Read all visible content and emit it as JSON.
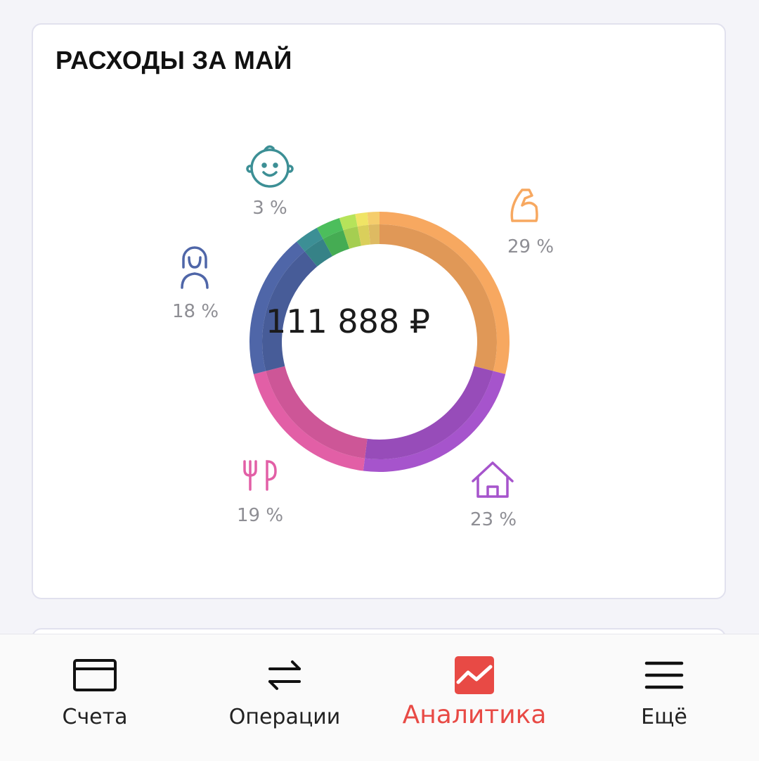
{
  "card": {
    "title": "РАСХОДЫ ЗА МАЙ",
    "total": "111 888 ₽"
  },
  "chart_data": {
    "type": "pie",
    "style": "donut",
    "center_label": "111 888 ₽",
    "slices": [
      {
        "category": "sport",
        "icon": "biceps-icon",
        "label": "29 %",
        "value": 29,
        "color": "#f7a860"
      },
      {
        "category": "home",
        "icon": "house-icon",
        "label": "23 %",
        "value": 23,
        "color": "#a654cc"
      },
      {
        "category": "food",
        "icon": "fork-knife-icon",
        "label": "19 %",
        "value": 19,
        "color": "#e25fa6"
      },
      {
        "category": "personal",
        "icon": "woman-icon",
        "label": "18 %",
        "value": 18,
        "color": "#4f66a8"
      },
      {
        "category": "kids",
        "icon": "baby-face-icon",
        "label": "3 %",
        "value": 3,
        "color": "#3c8f95"
      },
      {
        "category": "other-1",
        "icon": "",
        "label": "",
        "value": 3,
        "color": "#4cbe5c"
      },
      {
        "category": "other-2",
        "icon": "",
        "label": "",
        "value": 2,
        "color": "#b6e35a"
      },
      {
        "category": "other-3",
        "icon": "",
        "label": "",
        "value": 1.5,
        "color": "#f0e465"
      },
      {
        "category": "other-4",
        "icon": "",
        "label": "",
        "value": 1.5,
        "color": "#f5cd6c"
      }
    ]
  },
  "tabbar": {
    "accent_color": "#e84a45",
    "tabs": [
      {
        "label": "Счета",
        "icon": "card-icon",
        "active": false
      },
      {
        "label": "Операции",
        "icon": "transfer-icon",
        "active": false
      },
      {
        "label": "Аналитика",
        "icon": "analytics-icon",
        "active": true
      },
      {
        "label": "Ещё",
        "icon": "menu-icon",
        "active": false
      }
    ]
  }
}
